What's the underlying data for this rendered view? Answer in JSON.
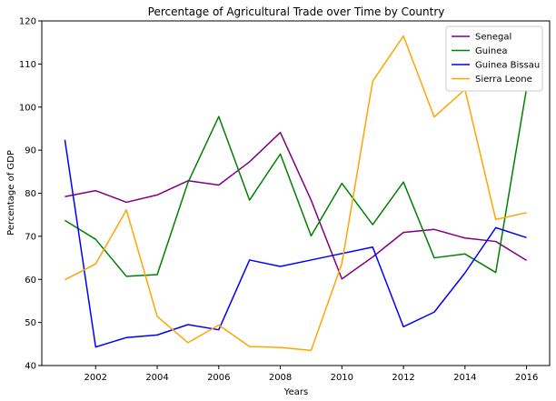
{
  "chart_data": {
    "type": "line",
    "title": "Percentage of Agricultural Trade over Time by Country",
    "xlabel": "Years",
    "ylabel": "Percentage of GDP",
    "x": [
      2001,
      2002,
      2003,
      2004,
      2005,
      2006,
      2007,
      2008,
      2009,
      2010,
      2011,
      2012,
      2013,
      2014,
      2015,
      2016
    ],
    "xlim": [
      2000.25,
      2016.75
    ],
    "ylim": [
      40,
      120
    ],
    "xticks": [
      2002,
      2004,
      2006,
      2008,
      2010,
      2012,
      2014,
      2016
    ],
    "yticks": [
      40,
      50,
      60,
      70,
      80,
      90,
      100,
      110,
      120
    ],
    "grid": false,
    "legend_position": "top-right",
    "series": [
      {
        "name": "Senegal",
        "color": "#800080",
        "values": [
          79.2,
          80.6,
          77.9,
          79.6,
          82.9,
          81.9,
          87.3,
          94.1,
          78.4,
          60.1,
          65.2,
          70.9,
          71.6,
          69.6,
          68.8,
          64.4
        ]
      },
      {
        "name": "Guinea",
        "color": "#008000",
        "values": [
          73.7,
          69.3,
          60.7,
          61.1,
          82.5,
          97.8,
          78.4,
          89.1,
          70.1,
          82.3,
          72.7,
          82.6,
          65.0,
          65.9,
          61.6,
          104.3
        ]
      },
      {
        "name": "Guinea Bissau",
        "color": "#0000ff",
        "values": [
          92.4,
          44.3,
          46.5,
          47.1,
          49.5,
          48.3,
          64.5,
          63.0,
          64.5,
          66.0,
          67.5,
          49.0,
          52.4,
          61.5,
          72.0,
          69.7
        ]
      },
      {
        "name": "Sierra Leone",
        "color": "#ffa500",
        "values": [
          59.9,
          63.6,
          76.1,
          51.4,
          45.3,
          49.4,
          44.4,
          44.2,
          43.5,
          63.7,
          106.0,
          116.5,
          97.7,
          104.1,
          73.9,
          75.5
        ]
      }
    ]
  }
}
